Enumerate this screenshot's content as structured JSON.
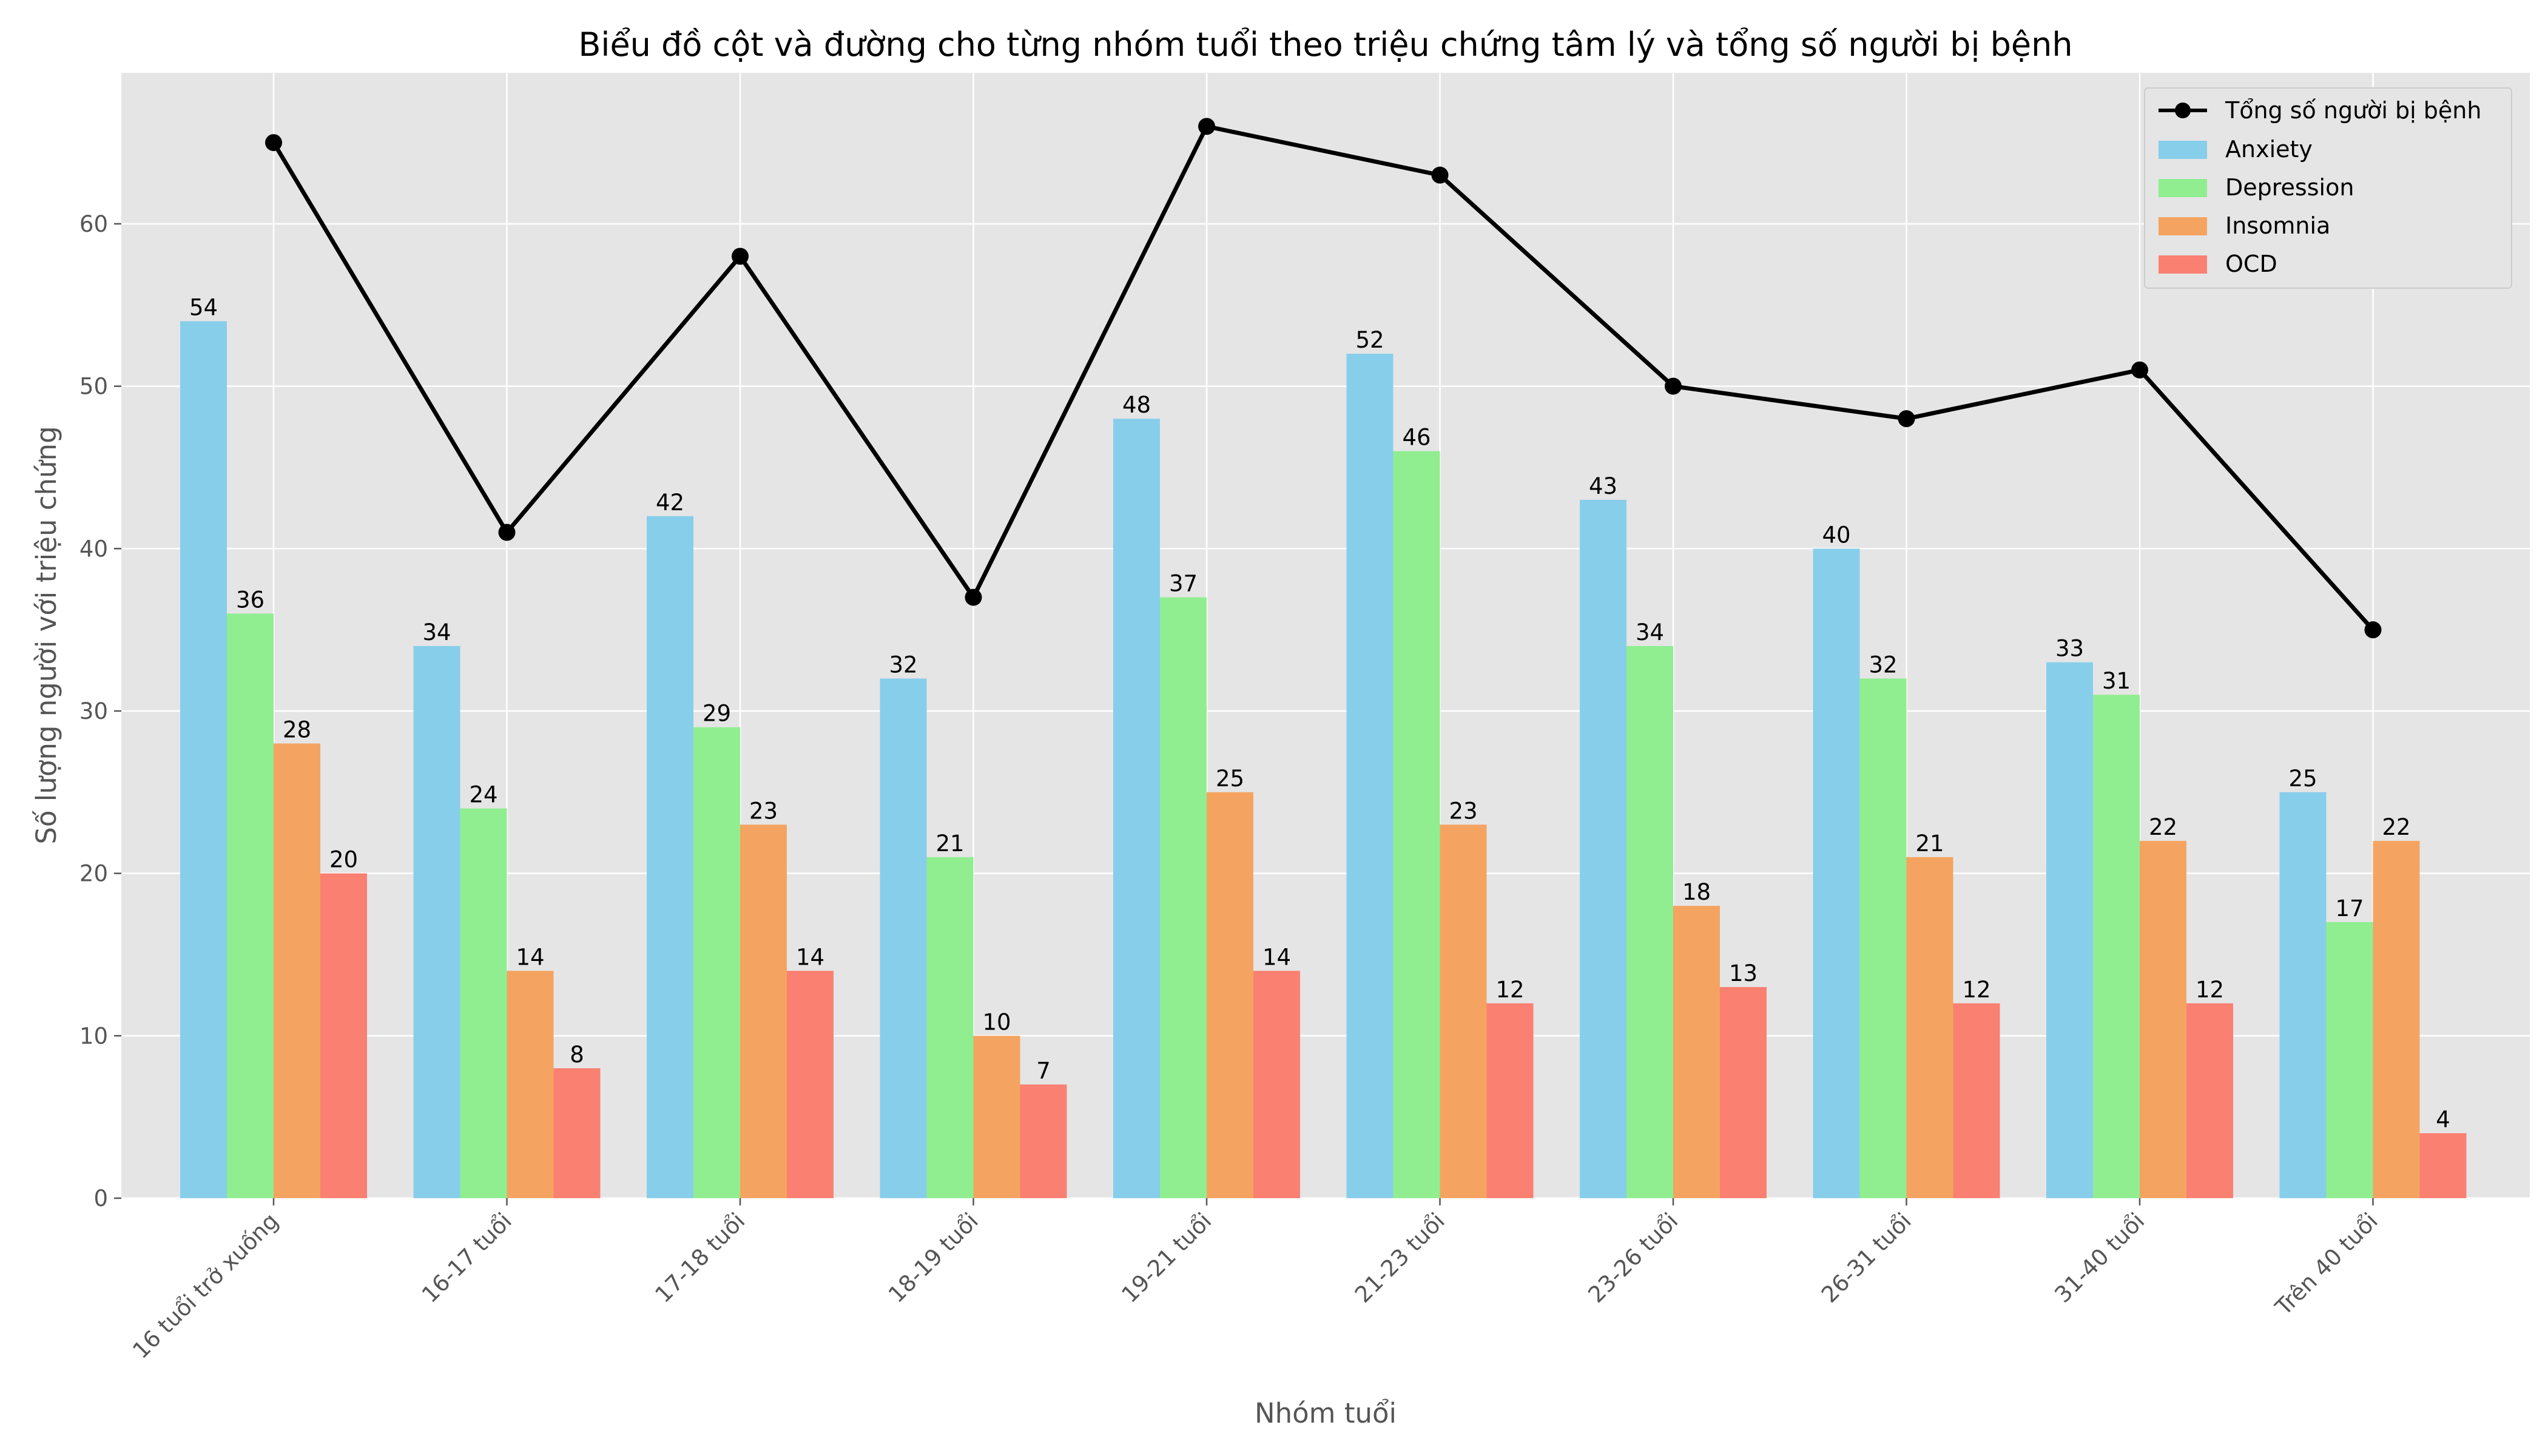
{
  "chart_data": {
    "type": "bar",
    "title": "Biểu đồ cột và đường cho từng nhóm tuổi theo triệu chứng tâm lý và tổng số người bị bệnh",
    "xlabel": "Nhóm tuổi",
    "ylabel": "Số lượng người với triệu chứng",
    "categories": [
      "16 tuổi trở xuống",
      "16-17 tuổi",
      "17-18 tuổi",
      "18-19 tuổi",
      "19-21 tuổi",
      "21-23 tuổi",
      "23-26 tuổi",
      "26-31 tuổi",
      "31-40 tuổi",
      "Trên 40 tuổi"
    ],
    "series": [
      {
        "name": "Anxiety",
        "type": "bar",
        "color": "#87CEEB",
        "values": [
          54,
          34,
          42,
          32,
          48,
          52,
          43,
          40,
          33,
          25
        ]
      },
      {
        "name": "Depression",
        "type": "bar",
        "color": "#90EE90",
        "values": [
          36,
          24,
          29,
          21,
          37,
          46,
          34,
          32,
          31,
          17
        ]
      },
      {
        "name": "Insomnia",
        "type": "bar",
        "color": "#F4A460",
        "values": [
          28,
          14,
          23,
          10,
          25,
          23,
          18,
          21,
          22,
          22
        ]
      },
      {
        "name": "OCD",
        "type": "bar",
        "color": "#FA8072",
        "values": [
          20,
          8,
          14,
          7,
          14,
          12,
          13,
          12,
          12,
          4
        ]
      }
    ],
    "line": {
      "name": "Tổng số người bị bệnh",
      "type": "line",
      "color": "#000000",
      "values": [
        65,
        41,
        58,
        37,
        66,
        63,
        50,
        48,
        51,
        35
      ]
    },
    "ylim": [
      0,
      69.3
    ],
    "yticks": [
      "0",
      "10",
      "20",
      "30",
      "40",
      "50",
      "60"
    ],
    "grid": true,
    "legend_position": "top-right",
    "background": "#E5E5E5"
  }
}
